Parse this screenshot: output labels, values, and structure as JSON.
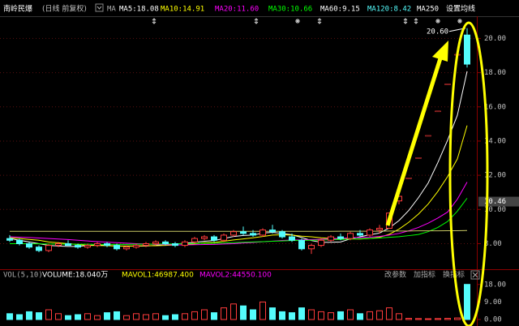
{
  "header": {
    "stock": "南岭民爆",
    "mode": "(日线 前复权)",
    "ma_label": "MA",
    "ma_legend": [
      {
        "label": "MA5:18.08",
        "color": "#ffffff"
      },
      {
        "label": "MA10:14.91",
        "color": "#ffff00"
      },
      {
        "label": "MA20:11.60",
        "color": "#ff00ff"
      },
      {
        "label": "MA30:10.66",
        "color": "#00ff00"
      },
      {
        "label": "MA60:9.15",
        "color": "#ffffff"
      },
      {
        "label": "MA120:8.42",
        "color": "#54fcfc"
      },
      {
        "label": "MA250",
        "color": "#ffffff"
      }
    ],
    "settings": "设置均线"
  },
  "chart_data": [
    {
      "type": "candlestick",
      "up_color": "#ff3c3c",
      "down_color": "#54fcfc",
      "grid": true,
      "ylim": [
        6.6,
        21.3
      ],
      "yticks": [
        {
          "value": 8,
          "label": "8.00"
        },
        {
          "value": 10,
          "label": "10.00"
        },
        {
          "value": 12,
          "label": "12.00"
        },
        {
          "value": 14,
          "label": "14.00"
        },
        {
          "value": 16,
          "label": "16.00"
        },
        {
          "value": 18,
          "label": "18.00"
        },
        {
          "value": 20,
          "label": "20.00"
        }
      ],
      "current_price": {
        "value": 10.46,
        "label": "10.46"
      },
      "high_label": {
        "value": 20.6,
        "label": "20.60"
      },
      "ohlc": [
        [
          8.3,
          8.5,
          8.1,
          8.2
        ],
        [
          8.2,
          8.3,
          7.9,
          8.0
        ],
        [
          8.0,
          8.1,
          7.7,
          7.8
        ],
        [
          7.8,
          7.9,
          7.5,
          7.6
        ],
        [
          7.6,
          8.0,
          7.5,
          7.9
        ],
        [
          7.9,
          8.1,
          7.8,
          8.0
        ],
        [
          8.0,
          8.2,
          7.9,
          7.9
        ],
        [
          7.9,
          8.0,
          7.7,
          7.8
        ],
        [
          7.8,
          8.0,
          7.7,
          7.9
        ],
        [
          7.9,
          8.1,
          7.8,
          8.0
        ],
        [
          8.0,
          8.1,
          7.8,
          7.9
        ],
        [
          7.9,
          8.0,
          7.6,
          7.7
        ],
        [
          7.7,
          7.9,
          7.6,
          7.8
        ],
        [
          7.8,
          8.0,
          7.7,
          7.9
        ],
        [
          7.9,
          8.1,
          7.8,
          8.0
        ],
        [
          8.0,
          8.2,
          7.9,
          8.1
        ],
        [
          8.1,
          8.2,
          7.9,
          8.0
        ],
        [
          8.0,
          8.1,
          7.8,
          7.9
        ],
        [
          7.9,
          8.2,
          7.8,
          8.1
        ],
        [
          8.1,
          8.4,
          8.0,
          8.3
        ],
        [
          8.3,
          8.5,
          8.2,
          8.4
        ],
        [
          8.4,
          8.5,
          8.1,
          8.2
        ],
        [
          8.2,
          8.6,
          8.1,
          8.5
        ],
        [
          8.5,
          8.8,
          8.4,
          8.7
        ],
        [
          8.7,
          9.0,
          8.5,
          8.6
        ],
        [
          8.6,
          8.8,
          8.4,
          8.5
        ],
        [
          8.5,
          8.9,
          8.4,
          8.8
        ],
        [
          8.8,
          9.1,
          8.6,
          8.7
        ],
        [
          8.7,
          8.8,
          8.3,
          8.4
        ],
        [
          8.4,
          8.6,
          8.1,
          8.2
        ],
        [
          8.2,
          8.3,
          7.6,
          7.7
        ],
        [
          7.7,
          8.0,
          7.4,
          7.9
        ],
        [
          7.9,
          8.3,
          7.8,
          8.2
        ],
        [
          8.2,
          8.5,
          8.1,
          8.4
        ],
        [
          8.4,
          8.6,
          8.2,
          8.3
        ],
        [
          8.3,
          8.7,
          8.2,
          8.6
        ],
        [
          8.6,
          8.8,
          8.4,
          8.5
        ],
        [
          8.5,
          8.9,
          8.4,
          8.8
        ],
        [
          8.8,
          9.1,
          8.6,
          8.9
        ],
        [
          8.9,
          9.8,
          8.9,
          9.79
        ],
        [
          10.5,
          10.77,
          10.3,
          10.77
        ],
        [
          11.85,
          11.85,
          11.85,
          11.85
        ],
        [
          13.03,
          13.03,
          13.03,
          13.03
        ],
        [
          14.33,
          14.33,
          14.33,
          14.33
        ],
        [
          15.76,
          15.76,
          15.76,
          15.76
        ],
        [
          17.34,
          17.34,
          17.34,
          17.34
        ],
        [
          19.07,
          19.07,
          19.07,
          19.07
        ],
        [
          20.2,
          20.6,
          18.3,
          18.5
        ]
      ],
      "ma_lines": [
        {
          "name": "MA5",
          "color": "#ffffff",
          "values": [
            8.3,
            8.2,
            8.1,
            8.0,
            7.9,
            7.86,
            7.84,
            7.84,
            7.9,
            7.92,
            7.9,
            7.86,
            7.86,
            7.86,
            7.86,
            7.9,
            7.96,
            7.98,
            8.02,
            8.08,
            8.14,
            8.18,
            8.3,
            8.42,
            8.48,
            8.5,
            8.62,
            8.66,
            8.6,
            8.52,
            8.36,
            8.18,
            8.08,
            8.08,
            8.1,
            8.28,
            8.4,
            8.52,
            8.62,
            8.92,
            9.35,
            9.94,
            10.69,
            11.55,
            12.75,
            14.06,
            15.51,
            18.08
          ]
        },
        {
          "name": "MA10",
          "color": "#ffff00",
          "values": [
            8.35,
            8.3,
            8.25,
            8.2,
            8.1,
            8.05,
            8.0,
            7.95,
            7.9,
            7.89,
            7.88,
            7.86,
            7.85,
            7.86,
            7.88,
            7.88,
            7.9,
            7.92,
            7.94,
            7.98,
            8.05,
            8.07,
            8.14,
            8.22,
            8.28,
            8.34,
            8.42,
            8.5,
            8.52,
            8.5,
            8.44,
            8.4,
            8.34,
            8.31,
            8.28,
            8.28,
            8.27,
            8.3,
            8.37,
            8.55,
            8.85,
            9.25,
            9.73,
            10.32,
            11.06,
            11.93,
            12.96,
            14.91
          ]
        },
        {
          "name": "MA20",
          "color": "#ff00ff",
          "values": [
            8.4,
            8.38,
            8.36,
            8.33,
            8.3,
            8.27,
            8.24,
            8.2,
            8.16,
            8.12,
            8.09,
            8.06,
            8.03,
            8.0,
            7.98,
            7.96,
            7.94,
            7.93,
            7.93,
            7.94,
            7.95,
            7.96,
            7.98,
            8.0,
            8.04,
            8.07,
            8.11,
            8.15,
            8.19,
            8.21,
            8.22,
            8.24,
            8.26,
            8.28,
            8.31,
            8.34,
            8.36,
            8.38,
            8.42,
            8.5,
            8.6,
            8.75,
            8.95,
            9.2,
            9.5,
            9.85,
            10.6,
            11.6
          ]
        },
        {
          "name": "MA30",
          "color": "#00ff00",
          "values": [
            8.0,
            8.0,
            7.99,
            7.99,
            7.98,
            7.98,
            7.97,
            7.97,
            7.97,
            7.96,
            7.96,
            7.96,
            7.96,
            7.97,
            7.97,
            7.98,
            7.98,
            7.99,
            8.0,
            8.01,
            8.02,
            8.03,
            8.04,
            8.06,
            8.08,
            8.1,
            8.12,
            8.14,
            8.16,
            8.18,
            8.19,
            8.2,
            8.21,
            8.23,
            8.25,
            8.27,
            8.29,
            8.31,
            8.33,
            8.37,
            8.41,
            8.47,
            8.54,
            8.7,
            8.95,
            9.3,
            9.9,
            10.66
          ]
        },
        {
          "name": "MA250",
          "color": "#c8c864",
          "values": [
            8.72,
            8.72,
            8.72,
            8.72,
            8.72,
            8.72,
            8.72,
            8.72,
            8.72,
            8.72,
            8.72,
            8.72,
            8.72,
            8.72,
            8.72,
            8.72,
            8.72,
            8.72,
            8.72,
            8.72,
            8.72,
            8.72,
            8.72,
            8.72,
            8.72,
            8.72,
            8.72,
            8.72,
            8.72,
            8.72,
            8.72,
            8.72,
            8.72,
            8.72,
            8.73,
            8.73,
            8.73,
            8.73,
            8.73,
            8.74,
            8.74,
            8.74,
            8.75,
            8.75,
            8.75,
            8.76,
            8.76,
            8.77
          ]
        }
      ]
    },
    {
      "type": "volume",
      "title": "VOL(5,10)",
      "legend": [
        {
          "label": "VOLUME:18.040万",
          "color": "#ffffff"
        },
        {
          "label": "MAVOL1:46987.400",
          "color": "#ffff00"
        },
        {
          "label": "MAVOL2:44550.100",
          "color": "#ff00ff"
        }
      ],
      "buttons": [
        "改参数",
        "加指标",
        "换指标"
      ],
      "ylim": [
        0,
        20
      ],
      "yticks": [
        {
          "value": 18,
          "label": "18.00"
        },
        {
          "value": 9,
          "label": "9.00"
        },
        {
          "value": 0,
          "label": "0.00"
        }
      ],
      "values": [
        3,
        2.5,
        4,
        3.5,
        5,
        3,
        2,
        2.5,
        3,
        2,
        3.5,
        4,
        2,
        3,
        2.5,
        3,
        2,
        2.5,
        3,
        4,
        5,
        3.5,
        6,
        8,
        7,
        5,
        9,
        6,
        4,
        3.5,
        6,
        5,
        4,
        3.5,
        4,
        5,
        3,
        4,
        4.5,
        6,
        3,
        0.6,
        0.5,
        0.4,
        0.5,
        0.6,
        0.8,
        18.04
      ]
    }
  ]
}
